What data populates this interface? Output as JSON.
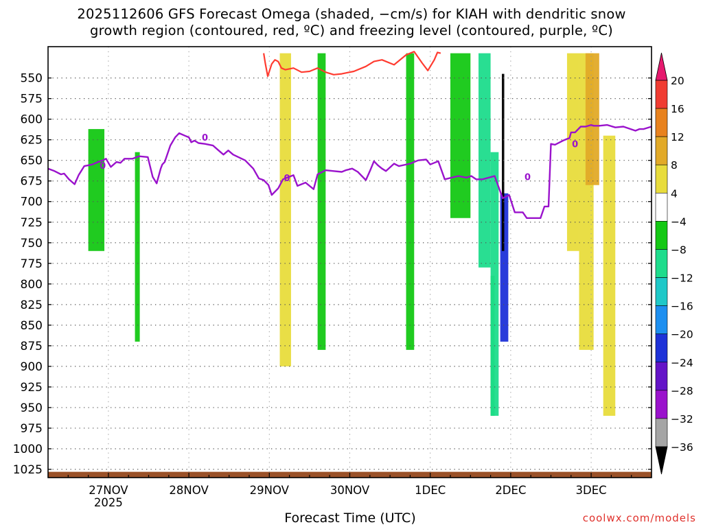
{
  "title_line1": "2025112606 GFS Forecast Omega (shaded, −cm/s) for KIAH with dendritic snow",
  "title_line2": "growth region (contoured, red, ºC) and freezing level (contoured, purple, ºC)",
  "xlabel": "Forecast Time (UTC)",
  "credit": "coolwx.com/models",
  "colors": {
    "ground": "#9a5128",
    "grid": "#555555",
    "dgz": "#ff3b30",
    "freeze": "#9a12cc",
    "colorbar": [
      "#000000",
      "#a5a5a5",
      "#9a12cc",
      "#6414c8",
      "#1e32d8",
      "#1d8ff0",
      "#1ec8c8",
      "#1edc8c",
      "#14c814",
      "#ffffff",
      "#e8dc3c",
      "#e2aa28",
      "#e8821e",
      "#f03c32",
      "#e6196e"
    ]
  },
  "chart_data": {
    "type": "heatmap",
    "xlim": [
      0,
      7.5
    ],
    "ylim": [
      1035,
      512
    ],
    "x_ticks": [
      {
        "x": 0.75,
        "label": "27NOV"
      },
      {
        "x": 1.75,
        "label": "28NOV"
      },
      {
        "x": 2.75,
        "label": "29NOV"
      },
      {
        "x": 3.75,
        "label": "30NOV"
      },
      {
        "x": 4.75,
        "label": "1DEC"
      },
      {
        "x": 5.75,
        "label": "2DEC"
      },
      {
        "x": 6.75,
        "label": "3DEC"
      }
    ],
    "x_year_label": "2025",
    "y_ticks": [
      550,
      575,
      600,
      625,
      650,
      675,
      700,
      725,
      750,
      775,
      800,
      825,
      850,
      875,
      900,
      925,
      950,
      975,
      1000,
      1025
    ],
    "colorbar": {
      "labels": [
        "20",
        "16",
        "12",
        "8",
        "4",
        "−4",
        "−8",
        "−12",
        "−16",
        "−20",
        "−24",
        "−28",
        "−32",
        "−36"
      ],
      "bounds": [
        20,
        16,
        12,
        8,
        4,
        -4,
        -8,
        -12,
        -16,
        -20,
        -24,
        -28,
        -32,
        -36
      ]
    },
    "freezing_level": {
      "label": "0",
      "x": [
        0,
        0.08,
        0.16,
        0.2,
        0.26,
        0.33,
        0.38,
        0.45,
        0.55,
        0.62,
        0.68,
        0.72,
        0.78,
        0.85,
        0.9,
        0.95,
        1.05,
        1.13,
        1.24,
        1.3,
        1.35,
        1.4,
        1.42,
        1.45,
        1.52,
        1.58,
        1.63,
        1.7,
        1.75,
        1.78,
        1.82,
        1.87,
        1.95,
        2.05,
        2.12,
        2.18,
        2.24,
        2.3,
        2.45,
        2.5,
        2.55,
        2.62,
        2.68,
        2.74,
        2.78,
        2.86,
        2.92,
        2.97,
        3.05,
        3.1,
        3.2,
        3.3,
        3.35,
        3.45,
        3.55,
        3.65,
        3.7,
        3.78,
        3.85,
        3.95,
        4.0,
        4.05,
        4.1,
        4.15,
        4.2,
        4.3,
        4.36,
        4.5,
        4.6,
        4.7,
        4.75,
        4.85,
        4.93,
        5.1,
        5.2,
        5.26,
        5.32,
        5.4,
        5.55,
        5.65,
        5.73,
        5.8,
        5.9,
        5.95,
        6.03,
        6.07,
        6.12,
        6.17,
        6.22,
        6.25,
        6.3,
        6.4,
        6.45,
        6.48,
        6.5,
        6.52,
        6.55,
        6.62,
        6.68,
        6.75,
        6.78,
        6.85,
        6.95,
        7.05,
        7.15,
        7.3,
        7.35,
        7.4,
        7.5
      ],
      "p": [
        660,
        663,
        667,
        666,
        673,
        679,
        668,
        657,
        655,
        652,
        650,
        648,
        658,
        652,
        653,
        648,
        648,
        645,
        646,
        670,
        678,
        660,
        655,
        652,
        632,
        622,
        617,
        620,
        622,
        628,
        626,
        629,
        630,
        632,
        638,
        643,
        638,
        643,
        650,
        655,
        660,
        672,
        674,
        680,
        692,
        684,
        673,
        671,
        668,
        681,
        677,
        685,
        667,
        662,
        663,
        664,
        662,
        660,
        664,
        674,
        663,
        651,
        656,
        660,
        663,
        654,
        657,
        654,
        650,
        649,
        655,
        651,
        673,
        669,
        671,
        669,
        673,
        673,
        669,
        696,
        692,
        713,
        713,
        720,
        720,
        720,
        720,
        706,
        706,
        630,
        631,
        626,
        624,
        623,
        616,
        616,
        616,
        609,
        609,
        607,
        608,
        608,
        607,
        610,
        609,
        614,
        612,
        612,
        609
      ],
      "labels_at": [
        [
          0.68,
          656
        ],
        [
          1.95,
          622
        ],
        [
          2.97,
          671
        ],
        [
          5.96,
          670
        ],
        [
          6.55,
          630
        ]
      ]
    },
    "dgz_contour": {
      "x": [
        2.68,
        2.7,
        2.73,
        2.78,
        2.82,
        2.86,
        2.9,
        2.95,
        3.05,
        3.15,
        3.25,
        3.35,
        3.45,
        3.55,
        3.65,
        3.8,
        3.95,
        4.05,
        4.15,
        4.3,
        4.45,
        4.55,
        4.65,
        4.72,
        4.8,
        4.84,
        4.88
      ],
      "p": [
        520,
        532,
        548,
        533,
        528,
        530,
        538,
        540,
        538,
        543,
        542,
        538,
        543,
        546,
        545,
        542,
        536,
        530,
        528,
        534,
        522,
        518,
        532,
        541,
        528,
        519,
        520
      ]
    },
    "shading_bands": [
      {
        "x": [
          0.5,
          0.7
        ],
        "p": [
          612,
          760
        ],
        "value": -8
      },
      {
        "x": [
          1.08,
          1.14
        ],
        "p": [
          640,
          870
        ],
        "value": -8
      },
      {
        "x": [
          2.88,
          3.02
        ],
        "p": [
          520,
          900
        ],
        "value": 6
      },
      {
        "x": [
          3.35,
          3.45
        ],
        "p": [
          520,
          880
        ],
        "value": -8
      },
      {
        "x": [
          4.45,
          4.55
        ],
        "p": [
          520,
          880
        ],
        "value": -8
      },
      {
        "x": [
          5.0,
          5.25
        ],
        "p": [
          520,
          720
        ],
        "value": -8
      },
      {
        "x": [
          5.5,
          5.55
        ],
        "p": [
          790,
          960
        ],
        "value": -8
      },
      {
        "x": [
          5.35,
          5.5
        ],
        "p": [
          520,
          780
        ],
        "value": -10
      },
      {
        "x": [
          5.5,
          5.6
        ],
        "p": [
          640,
          960
        ],
        "value": -12
      },
      {
        "x": [
          5.62,
          5.72
        ],
        "p": [
          690,
          870
        ],
        "value": -22
      },
      {
        "x": [
          5.64,
          5.67
        ],
        "p": [
          545,
          760
        ],
        "value": -40
      },
      {
        "x": [
          6.45,
          6.6
        ],
        "p": [
          520,
          760
        ],
        "value": 6
      },
      {
        "x": [
          6.6,
          6.78
        ],
        "p": [
          520,
          880
        ],
        "value": 6
      },
      {
        "x": [
          6.68,
          6.85
        ],
        "p": [
          520,
          680
        ],
        "value": 10
      },
      {
        "x": [
          6.9,
          7.05
        ],
        "p": [
          620,
          960
        ],
        "value": 6
      }
    ]
  }
}
